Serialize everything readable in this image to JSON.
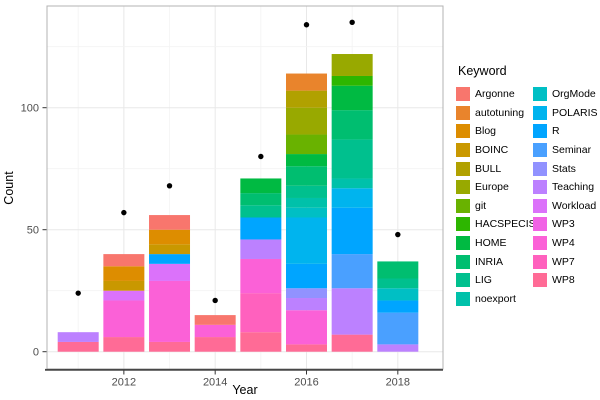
{
  "chart_data": {
    "type": "bar",
    "stacked": true,
    "title": "",
    "xlabel": "Year",
    "ylabel": "Count",
    "legend_title": "Keyword",
    "legend_position": "right",
    "grid": true,
    "x_ticks": [
      "2012",
      "2014",
      "2016",
      "2018"
    ],
    "y_ticks": [
      0,
      50,
      100
    ],
    "y_minor_ticks": [
      25,
      75,
      125
    ],
    "x_range": [
      2010.45,
      2018.55
    ],
    "y_range": [
      -7,
      142
    ],
    "dot_color": "#000000",
    "axis_text_color": "#4d4d4d",
    "panel_border_color": "#b3b3b3",
    "axis_line_color": "#474747",
    "grid_major_color": "#e8e8e8",
    "grid_minor_color": "#f3f3f3",
    "keywords": [
      {
        "label": "Argonne",
        "color": "#F8766D"
      },
      {
        "label": "autotuning",
        "color": "#E9842C"
      },
      {
        "label": "Blog",
        "color": "#DD8D00"
      },
      {
        "label": "BOINC",
        "color": "#C99800"
      },
      {
        "label": "BULL",
        "color": "#B1A100"
      },
      {
        "label": "Europe",
        "color": "#98A900"
      },
      {
        "label": "git",
        "color": "#69B200"
      },
      {
        "label": "HACSPECIS",
        "color": "#2DB600"
      },
      {
        "label": "HOME",
        "color": "#00BA42"
      },
      {
        "label": "INRIA",
        "color": "#00BE70"
      },
      {
        "label": "LIG",
        "color": "#00C08E"
      },
      {
        "label": "noexport",
        "color": "#00C1AA"
      },
      {
        "label": "OrgMode",
        "color": "#00BFC4"
      },
      {
        "label": "POLARIS",
        "color": "#00B4EE"
      },
      {
        "label": "R",
        "color": "#00A5FF"
      },
      {
        "label": "Seminar",
        "color": "#4AA0FF"
      },
      {
        "label": "Stats",
        "color": "#9192FF"
      },
      {
        "label": "Teaching",
        "color": "#BC81FF"
      },
      {
        "label": "Workload",
        "color": "#DB72FA"
      },
      {
        "label": "WP3",
        "color": "#F163E5"
      },
      {
        "label": "WP4",
        "color": "#FB61D7"
      },
      {
        "label": "WP7",
        "color": "#FF61BE"
      },
      {
        "label": "WP8",
        "color": "#FF6B96"
      }
    ],
    "years": [
      2011,
      2012,
      2013,
      2014,
      2015,
      2016,
      2017,
      2018
    ],
    "stacks": [
      {
        "year": 2011,
        "total": 8,
        "segments": [
          [
            "Teaching",
            4
          ],
          [
            "WP8",
            4
          ]
        ]
      },
      {
        "year": 2012,
        "total": 40,
        "segments": [
          [
            "Argonne",
            5
          ],
          [
            "Blog",
            6
          ],
          [
            "BOINC",
            4
          ],
          [
            "Workload",
            4
          ],
          [
            "WP4",
            15
          ],
          [
            "WP8",
            6
          ]
        ]
      },
      {
        "year": 2013,
        "total": 56,
        "segments": [
          [
            "Argonne",
            6
          ],
          [
            "Blog",
            6
          ],
          [
            "BOINC",
            4
          ],
          [
            "R",
            4
          ],
          [
            "Workload",
            7
          ],
          [
            "WP4",
            25
          ],
          [
            "WP8",
            4
          ]
        ]
      },
      {
        "year": 2014,
        "total": 15,
        "segments": [
          [
            "Argonne",
            4
          ],
          [
            "WP4",
            5
          ],
          [
            "WP8",
            6
          ]
        ]
      },
      {
        "year": 2015,
        "total": 71,
        "segments": [
          [
            "HOME",
            6
          ],
          [
            "INRIA",
            5
          ],
          [
            "LIG",
            5
          ],
          [
            "R",
            9
          ],
          [
            "Teaching",
            8
          ],
          [
            "WP4",
            14
          ],
          [
            "WP7",
            16
          ],
          [
            "WP8",
            8
          ]
        ]
      },
      {
        "year": 2016,
        "total": 114,
        "segments": [
          [
            "autotuning",
            7
          ],
          [
            "BULL",
            7
          ],
          [
            "Europe",
            11
          ],
          [
            "git",
            8
          ],
          [
            "HOME",
            5
          ],
          [
            "INRIA",
            8
          ],
          [
            "LIG",
            5
          ],
          [
            "noexport",
            4
          ],
          [
            "OrgMode",
            4
          ],
          [
            "POLARIS",
            19
          ],
          [
            "R",
            10
          ],
          [
            "Stats",
            4
          ],
          [
            "Teaching",
            5
          ],
          [
            "WP4",
            14
          ],
          [
            "WP8",
            3
          ]
        ]
      },
      {
        "year": 2017,
        "total": 122,
        "segments": [
          [
            "Europe",
            9
          ],
          [
            "HACSPECIS",
            4
          ],
          [
            "HOME",
            10
          ],
          [
            "INRIA",
            12
          ],
          [
            "LIG",
            16
          ],
          [
            "noexport",
            4
          ],
          [
            "POLARIS",
            8
          ],
          [
            "R",
            19
          ],
          [
            "Seminar",
            14
          ],
          [
            "Teaching",
            19
          ],
          [
            "WP8",
            7
          ]
        ]
      },
      {
        "year": 2018,
        "total": 37,
        "segments": [
          [
            "INRIA",
            7
          ],
          [
            "LIG",
            4
          ],
          [
            "OrgMode",
            5
          ],
          [
            "R",
            5
          ],
          [
            "Seminar",
            13
          ],
          [
            "Teaching",
            3
          ]
        ]
      }
    ],
    "dots": [
      {
        "year": 2011,
        "value": 24
      },
      {
        "year": 2012,
        "value": 57
      },
      {
        "year": 2013,
        "value": 68
      },
      {
        "year": 2014,
        "value": 21
      },
      {
        "year": 2015,
        "value": 80
      },
      {
        "year": 2016,
        "value": 134
      },
      {
        "year": 2017,
        "value": 135
      },
      {
        "year": 2018,
        "value": 48
      }
    ]
  }
}
